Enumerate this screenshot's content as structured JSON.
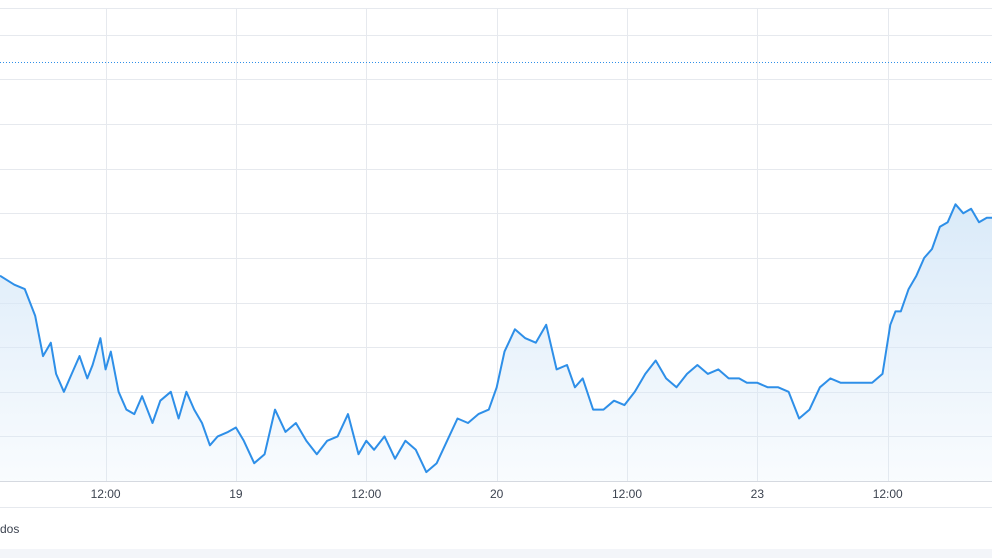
{
  "chart_data": {
    "type": "area",
    "x_ticks": [
      {
        "label": "12:00",
        "t": 0.75
      },
      {
        "label": "19",
        "t": 1.25
      },
      {
        "label": "12:00",
        "t": 1.75
      },
      {
        "label": "20",
        "t": 2.25
      },
      {
        "label": "12:00",
        "t": 2.75
      },
      {
        "label": "23",
        "t": 3.25
      },
      {
        "label": "12:00",
        "t": 3.75
      }
    ],
    "xlim": [
      0.345,
      4.15
    ],
    "ylim": [
      0,
      10.6
    ],
    "grid": true,
    "reference_line": {
      "value": 9.4,
      "style": "dotted"
    },
    "line_color": "#2e8fe8",
    "fill_color": "#d6e8f8",
    "series": [
      {
        "x": [
          0.345,
          0.4,
          0.44,
          0.48,
          0.51,
          0.54,
          0.56,
          0.59,
          0.62,
          0.65,
          0.68,
          0.7,
          0.73,
          0.75,
          0.77,
          0.8,
          0.83,
          0.86,
          0.89,
          0.93,
          0.96,
          1.0,
          1.03,
          1.06,
          1.09,
          1.12,
          1.15,
          1.18,
          1.22,
          1.25,
          1.28,
          1.32,
          1.36,
          1.4,
          1.44,
          1.48,
          1.52,
          1.56,
          1.6,
          1.64,
          1.68,
          1.72,
          1.75,
          1.78,
          1.82,
          1.86,
          1.9,
          1.94,
          1.98,
          2.02,
          2.06,
          2.1,
          2.14,
          2.18,
          2.22,
          2.25,
          2.28,
          2.32,
          2.36,
          2.4,
          2.44,
          2.48,
          2.52,
          2.55,
          2.58,
          2.62,
          2.66,
          2.7,
          2.74,
          2.78,
          2.82,
          2.86,
          2.9,
          2.94,
          2.98,
          3.02,
          3.06,
          3.1,
          3.14,
          3.18,
          3.21,
          3.25,
          3.29,
          3.33,
          3.37,
          3.41,
          3.45,
          3.49,
          3.53,
          3.57,
          3.61,
          3.65,
          3.69,
          3.73,
          3.76,
          3.78,
          3.8,
          3.83,
          3.86,
          3.89,
          3.92,
          3.95,
          3.98,
          4.01,
          4.04,
          4.07,
          4.1,
          4.13,
          4.15
        ],
        "y": [
          4.6,
          4.4,
          4.3,
          3.7,
          2.8,
          3.1,
          2.4,
          2.0,
          2.4,
          2.8,
          2.3,
          2.6,
          3.2,
          2.5,
          2.9,
          2.0,
          1.6,
          1.5,
          1.9,
          1.3,
          1.8,
          2.0,
          1.4,
          2.0,
          1.6,
          1.3,
          0.8,
          1.0,
          1.1,
          1.2,
          0.9,
          0.4,
          0.6,
          1.6,
          1.1,
          1.3,
          0.9,
          0.6,
          0.9,
          1.0,
          1.5,
          0.6,
          0.9,
          0.7,
          1.0,
          0.5,
          0.9,
          0.7,
          0.2,
          0.4,
          0.9,
          1.4,
          1.3,
          1.5,
          1.6,
          2.1,
          2.9,
          3.4,
          3.2,
          3.1,
          3.5,
          2.5,
          2.6,
          2.1,
          2.3,
          1.6,
          1.6,
          1.8,
          1.7,
          2.0,
          2.4,
          2.7,
          2.3,
          2.1,
          2.4,
          2.6,
          2.4,
          2.5,
          2.3,
          2.3,
          2.2,
          2.2,
          2.1,
          2.1,
          2.0,
          1.4,
          1.6,
          2.1,
          2.3,
          2.2,
          2.2,
          2.2,
          2.2,
          2.4,
          3.5,
          3.8,
          3.8,
          4.3,
          4.6,
          5.0,
          5.2,
          5.7,
          5.8,
          6.2,
          6.0,
          6.1,
          5.8,
          5.9,
          5.9
        ]
      }
    ],
    "legend_text": "dos"
  }
}
